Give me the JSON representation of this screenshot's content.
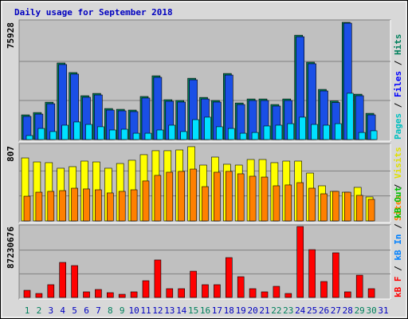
{
  "chart_data": {
    "type": "bar",
    "title": "Daily usage for September 2018",
    "categories": [
      "1",
      "2",
      "3",
      "4",
      "5",
      "6",
      "7",
      "8",
      "9",
      "10",
      "11",
      "12",
      "13",
      "14",
      "15",
      "16",
      "17",
      "18",
      "19",
      "20",
      "21",
      "22",
      "23",
      "24",
      "25",
      "26",
      "27",
      "28",
      "29",
      "30",
      "31"
    ],
    "category_colors": [
      "#00805c",
      "#00805c",
      "#0000c0",
      "#0000c0",
      "#0000c0",
      "#0000c0",
      "#0000c0",
      "#00805c",
      "#00805c",
      "#0000c0",
      "#0000c0",
      "#0000c0",
      "#0000c0",
      "#0000c0",
      "#00805c",
      "#00805c",
      "#0000c0",
      "#0000c0",
      "#0000c0",
      "#0000c0",
      "#0000c0",
      "#00805c",
      "#00805c",
      "#0000c0",
      "#0000c0",
      "#0000c0",
      "#0000c0",
      "#0000c0",
      "#00805c",
      "#00805c",
      "#0000c0"
    ],
    "legend_separator": " / ",
    "panels": [
      {
        "ylim": [
          0,
          75928
        ],
        "yticks": [
          75928
        ],
        "legend": [
          {
            "name": "Pages",
            "color": "#00c0c0"
          },
          {
            "name": "Files",
            "color": "#0000ff"
          },
          {
            "name": "Hits",
            "color": "#00805c"
          }
        ],
        "series": [
          {
            "name": "Hits",
            "color": "#00805c",
            "values": [
              16000,
              17500,
              24200,
              49600,
              43400,
              28400,
              29900,
              20100,
              19600,
              19100,
              27900,
              41300,
              25800,
              25300,
              39700,
              27300,
              25300,
              42800,
              23700,
              26300,
              26300,
              22700,
              26300,
              67600,
              50100,
              32500,
              25000,
              75928,
              29400,
              17000,
              null
            ]
          },
          {
            "name": "Files",
            "color": "#1a4fe6",
            "values": [
              15000,
              16500,
              23200,
              48600,
              42400,
              27400,
              28900,
              19100,
              18600,
              18100,
              26900,
              40300,
              24800,
              24300,
              38700,
              26300,
              24300,
              41800,
              22700,
              25300,
              25300,
              21700,
              25300,
              66600,
              49100,
              31500,
              24000,
              75400,
              28400,
              16000,
              null
            ]
          },
          {
            "name": "Pages",
            "color": "#00e0ff",
            "values": [
              2600,
              7200,
              5200,
              9300,
              11400,
              9800,
              8300,
              6200,
              6700,
              4100,
              4100,
              6200,
              9300,
              5200,
              12900,
              14500,
              8300,
              7200,
              4100,
              4600,
              8800,
              9300,
              10300,
              14500,
              9800,
              9300,
              10300,
              30000,
              4600,
              5700,
              null
            ]
          }
        ]
      },
      {
        "ylim": [
          0,
          807
        ],
        "yticks": [
          807
        ],
        "legend": [
          {
            "name": "Sites",
            "color": "#ff8000"
          },
          {
            "name": "Visits",
            "color": "#e0e000"
          }
        ],
        "series": [
          {
            "name": "Visits",
            "color": "#ffff00",
            "values": [
              678,
              635,
              627,
              567,
              584,
              644,
              635,
              567,
              618,
              653,
              713,
              756,
              756,
              764,
              799,
              601,
              687,
              610,
              601,
              661,
              661,
              627,
              644,
              644,
              515,
              378,
              318,
              309,
              361,
              258,
              null
            ]
          },
          {
            "name": "Sites",
            "color": "#ff8000",
            "values": [
              266,
              309,
              318,
              326,
              352,
              344,
              335,
              301,
              318,
              335,
              430,
              490,
              524,
              533,
              558,
              369,
              524,
              533,
              507,
              481,
              472,
              378,
              387,
              412,
              352,
              292,
              318,
              309,
              275,
              232,
              null
            ]
          }
        ]
      },
      {
        "ylim": [
          0,
          87230676
        ],
        "yticks": [
          87230676
        ],
        "legend": [
          {
            "name": "kB F",
            "color": "#ff0000"
          },
          {
            "name": "kB In",
            "color": "#0080ff"
          },
          {
            "name": "kB Out",
            "color": "#00c000"
          }
        ],
        "series": [
          {
            "name": "kB F",
            "color": "#ff0000",
            "values": [
              8800000,
              4900000,
              15700000,
              43100000,
              39200000,
              6900000,
              9800000,
              5900000,
              3900000,
              6900000,
              20600000,
              46100000,
              10800000,
              10800000,
              32300000,
              15700000,
              15700000,
              49000000,
              25500000,
              10800000,
              6900000,
              13700000,
              4900000,
              87230676,
              58800000,
              19600000,
              54900000,
              6900000,
              27400000,
              10800000,
              null
            ]
          }
        ]
      }
    ]
  }
}
